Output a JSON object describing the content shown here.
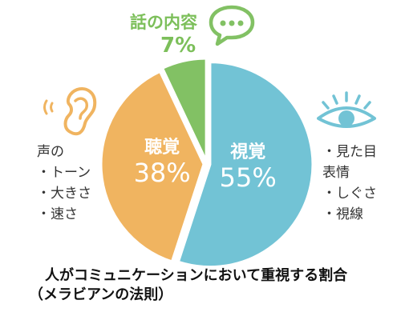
{
  "chart_data": {
    "type": "pie",
    "title": "人がコミュニケーションにおいて重視する割合",
    "subtitle": "（メラビアンの法則）",
    "slices": [
      {
        "label": "視覚",
        "value": 55,
        "display": "55%",
        "color": "#72c3d5"
      },
      {
        "label": "聴覚",
        "value": 38,
        "display": "38%",
        "color": "#f0b460"
      },
      {
        "label": "話の内容",
        "value": 7,
        "display": "7%",
        "color": "#82c164"
      }
    ]
  },
  "notes": {
    "auditory": [
      "声の",
      "・トーン",
      "・大きさ",
      "・速さ"
    ],
    "visual": [
      "・見た目",
      "表情",
      "・しぐさ",
      "・視線"
    ]
  },
  "colors": {
    "visual": "#72c3d5",
    "auditory": "#f0b460",
    "verbal": "#82c164",
    "verbal_label": "#7cbf5a",
    "ear_icon": "#f0b460",
    "eye_icon": "#72c3d5",
    "speech_icon": "#82c164"
  },
  "icons": [
    "ear-icon",
    "eye-icon",
    "speech-bubble-icon"
  ]
}
